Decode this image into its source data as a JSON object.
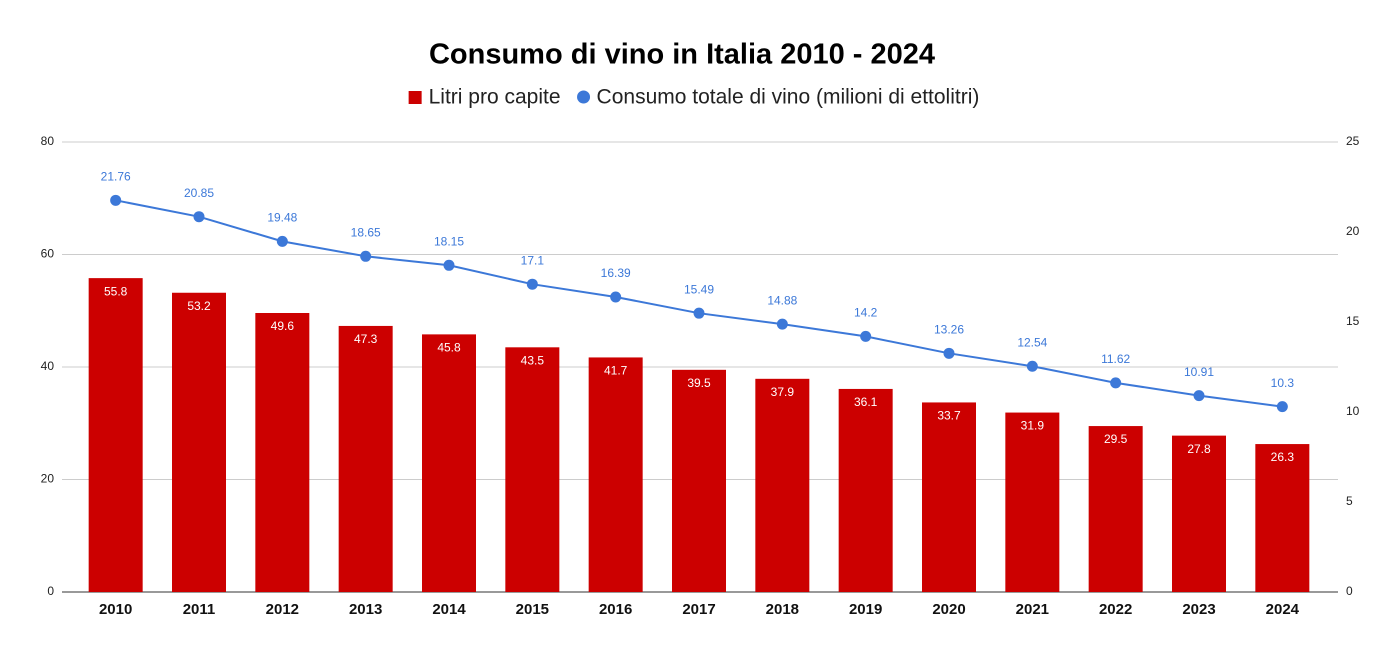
{
  "chart_data": {
    "type": "bar",
    "title": "Consumo di vino in Italia 2010 - 2024",
    "categories": [
      "2010",
      "2011",
      "2012",
      "2013",
      "2014",
      "2015",
      "2016",
      "2017",
      "2018",
      "2019",
      "2020",
      "2021",
      "2022",
      "2023",
      "2024"
    ],
    "series": [
      {
        "name": "Litri pro capite",
        "type": "bar",
        "color": "#cc0000",
        "values": [
          55.8,
          53.2,
          49.6,
          47.3,
          45.8,
          43.5,
          41.7,
          39.5,
          37.9,
          36.1,
          33.7,
          31.9,
          29.5,
          27.8,
          26.3
        ]
      },
      {
        "name": "Consumo totale di vino (milioni di ettolitri)",
        "type": "line",
        "axis": "y2",
        "color": "#3c78d8",
        "values": [
          21.76,
          20.85,
          19.48,
          18.65,
          18.15,
          17.1,
          16.39,
          15.49,
          14.88,
          14.2,
          13.26,
          12.54,
          11.62,
          10.91,
          10.3
        ]
      }
    ],
    "ylim": [
      0,
      80
    ],
    "yticks": [
      0,
      20,
      40,
      60,
      80
    ],
    "y2lim": [
      0,
      25
    ],
    "y2ticks": [
      0,
      5,
      10,
      15,
      20,
      25
    ],
    "grid": true,
    "legend": "top"
  }
}
